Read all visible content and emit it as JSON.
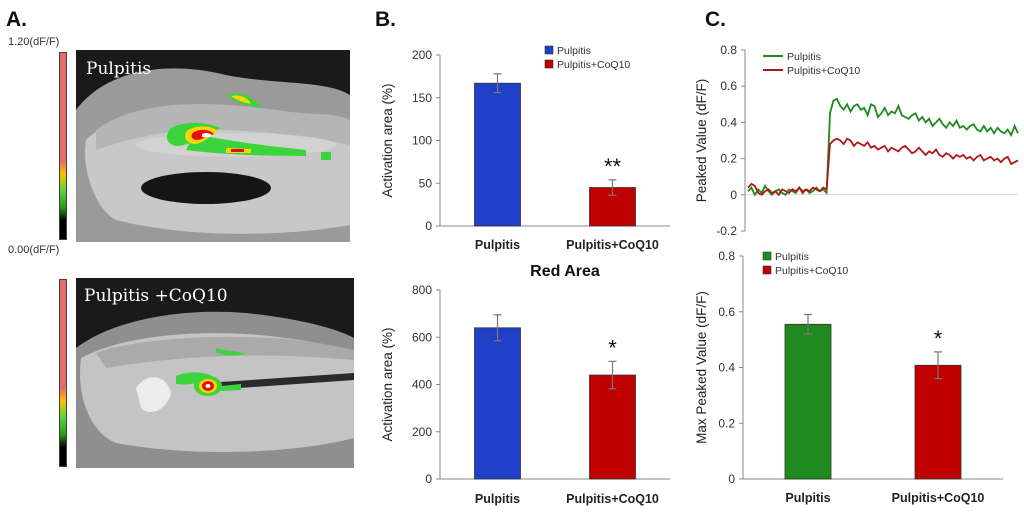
{
  "panels": {
    "a": {
      "letter": "A.",
      "scale_max": "1.20(dF/F)",
      "scale_min": "0.00(dF/F)",
      "image_top_label": "Pulpitis",
      "image_bottom_label": "Pulpitis +CoQ10"
    },
    "b": {
      "letter": "B."
    },
    "c": {
      "letter": "C."
    }
  },
  "colors": {
    "pulpitis_blue": "#1f3fc8",
    "coq10_red": "#c00000",
    "pulpitis_green": "#1e8a1e",
    "coq10_darkred": "#b01818"
  },
  "chart_data": [
    {
      "id": "b_top",
      "type": "bar",
      "title": "",
      "categories": [
        "Pulpitis",
        "Pulpitis+CoQ10"
      ],
      "values": [
        167,
        45
      ],
      "errors": [
        11,
        9
      ],
      "colors": [
        "#1f3fc8",
        "#c00000"
      ],
      "ylabel": "Activation area (%)",
      "ylim": [
        0,
        200
      ],
      "yticks": [
        0,
        50,
        100,
        150,
        200
      ],
      "legend": [
        "Pulpitis",
        "Pulpitis+CoQ10"
      ],
      "legend_position": "top-right",
      "annotations": [
        "",
        "**"
      ]
    },
    {
      "id": "b_bottom",
      "type": "bar",
      "title": "Red Area",
      "categories": [
        "Pulpitis",
        "Pulpitis+CoQ10"
      ],
      "values": [
        640,
        440
      ],
      "errors": [
        55,
        58
      ],
      "colors": [
        "#1f3fc8",
        "#c00000"
      ],
      "ylabel": "Activation area (%)",
      "ylim": [
        0,
        800
      ],
      "yticks": [
        0,
        200,
        400,
        600,
        800
      ],
      "annotations": [
        "",
        "*"
      ]
    },
    {
      "id": "c_top",
      "type": "line",
      "ylabel": "Peaked Value (dF/F)",
      "ylim": [
        -0.2,
        0.8
      ],
      "yticks": [
        -0.2,
        0,
        0.2,
        0.4,
        0.6,
        0.8
      ],
      "legend_position": "top-left",
      "series": [
        {
          "name": "Pulpitis",
          "color": "#1e8a1e",
          "values": [
            0.02,
            0.04,
            0.0,
            0.03,
            0.01,
            0.05,
            0.02,
            0.0,
            0.02,
            0.03,
            0.01,
            0.0,
            0.03,
            0.02,
            0.01,
            0.04,
            0.02,
            0.03,
            0.01,
            0.02,
            0.04,
            0.02,
            0.03,
            0.01,
            0.45,
            0.52,
            0.53,
            0.49,
            0.47,
            0.5,
            0.46,
            0.49,
            0.5,
            0.47,
            0.48,
            0.44,
            0.5,
            0.49,
            0.43,
            0.45,
            0.48,
            0.44,
            0.46,
            0.45,
            0.49,
            0.44,
            0.43,
            0.42,
            0.44,
            0.45,
            0.41,
            0.43,
            0.4,
            0.42,
            0.38,
            0.4,
            0.42,
            0.39,
            0.37,
            0.4,
            0.38,
            0.41,
            0.37,
            0.38,
            0.36,
            0.38,
            0.39,
            0.36,
            0.35,
            0.38,
            0.35,
            0.37,
            0.34,
            0.37,
            0.35,
            0.34,
            0.36,
            0.33,
            0.38,
            0.34
          ]
        },
        {
          "name": "Pulpitis+CoQ10",
          "color": "#b01818",
          "values": [
            0.04,
            0.06,
            0.05,
            0.01,
            0.0,
            0.02,
            0.03,
            0.01,
            0.02,
            0.0,
            0.03,
            0.02,
            0.01,
            0.03,
            0.02,
            0.04,
            0.01,
            0.03,
            0.02,
            0.04,
            0.03,
            0.02,
            0.04,
            0.03,
            0.28,
            0.3,
            0.31,
            0.3,
            0.28,
            0.31,
            0.3,
            0.27,
            0.29,
            0.28,
            0.27,
            0.29,
            0.26,
            0.27,
            0.25,
            0.26,
            0.27,
            0.24,
            0.26,
            0.25,
            0.24,
            0.26,
            0.27,
            0.25,
            0.23,
            0.24,
            0.26,
            0.24,
            0.22,
            0.24,
            0.23,
            0.25,
            0.22,
            0.21,
            0.23,
            0.22,
            0.2,
            0.22,
            0.21,
            0.22,
            0.2,
            0.21,
            0.19,
            0.21,
            0.22,
            0.19,
            0.2,
            0.21,
            0.19,
            0.2,
            0.18,
            0.2,
            0.21,
            0.17,
            0.18,
            0.19
          ]
        }
      ]
    },
    {
      "id": "c_bottom",
      "type": "bar",
      "categories": [
        "Pulpitis",
        "Pulpitis+CoQ10"
      ],
      "values": [
        0.555,
        0.408
      ],
      "errors": [
        0.035,
        0.048
      ],
      "colors": [
        "#1e8a1e",
        "#c00000"
      ],
      "ylabel": "Max Peaked Value (dF/F)",
      "ylim": [
        0,
        0.8
      ],
      "yticks": [
        0,
        0.2,
        0.4,
        0.6,
        0.8
      ],
      "legend": [
        "Pulpitis",
        "Pulpitis+CoQ10"
      ],
      "legend_position": "top-left",
      "annotations": [
        "",
        "*"
      ]
    }
  ]
}
